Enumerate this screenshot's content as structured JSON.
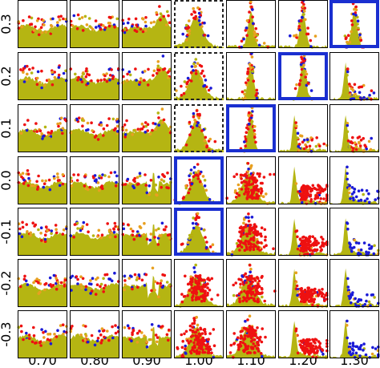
{
  "chart_data": {
    "type": "scatter",
    "layout": "small-multiples grid",
    "x_tick_labels": [
      "0.70",
      "0.80",
      "0.90",
      "1.00",
      "1.10",
      "1.20",
      "1.30"
    ],
    "y_tick_labels": [
      "0.3",
      "0.2",
      "0.1",
      "0.0",
      "-0.1",
      "-0.2",
      "-0.3"
    ],
    "columns": [
      0.7,
      0.8,
      0.9,
      1.0,
      1.1,
      1.2,
      1.3
    ],
    "rows": [
      0.3,
      0.2,
      0.1,
      0.0,
      -0.1,
      -0.2,
      -0.3
    ],
    "series_colors": {
      "base": "#b5b512",
      "red": "#ee1111",
      "blue": "#1a1ad6",
      "orange": "#e8a020"
    },
    "highlight_colors": {
      "solid": "#1a2fd0",
      "dashed": "#222222"
    },
    "panels": [
      {
        "row": 0,
        "col": 0,
        "pattern": "flat",
        "border": "none"
      },
      {
        "row": 0,
        "col": 1,
        "pattern": "flat",
        "border": "none"
      },
      {
        "row": 0,
        "col": 2,
        "pattern": "flat-bump",
        "border": "none"
      },
      {
        "row": 0,
        "col": 3,
        "pattern": "peak",
        "border": "dashed"
      },
      {
        "row": 0,
        "col": 4,
        "pattern": "narrow-peak",
        "border": "none"
      },
      {
        "row": 0,
        "col": 5,
        "pattern": "narrow-peak",
        "border": "none"
      },
      {
        "row": 0,
        "col": 6,
        "pattern": "narrow-peak",
        "border": "solid"
      },
      {
        "row": 1,
        "col": 0,
        "pattern": "flat",
        "border": "none"
      },
      {
        "row": 1,
        "col": 1,
        "pattern": "flat",
        "border": "none"
      },
      {
        "row": 1,
        "col": 2,
        "pattern": "flat-bump",
        "border": "none"
      },
      {
        "row": 1,
        "col": 3,
        "pattern": "peak",
        "border": "dashed"
      },
      {
        "row": 1,
        "col": 4,
        "pattern": "narrow-peak",
        "border": "none"
      },
      {
        "row": 1,
        "col": 5,
        "pattern": "narrow-peak",
        "border": "solid"
      },
      {
        "row": 1,
        "col": 6,
        "pattern": "spike-tail",
        "border": "none"
      },
      {
        "row": 2,
        "col": 0,
        "pattern": "flat",
        "border": "none"
      },
      {
        "row": 2,
        "col": 1,
        "pattern": "flat",
        "border": "none"
      },
      {
        "row": 2,
        "col": 2,
        "pattern": "flat-bump",
        "border": "none"
      },
      {
        "row": 2,
        "col": 3,
        "pattern": "peak",
        "border": "dashed"
      },
      {
        "row": 2,
        "col": 4,
        "pattern": "narrow-peak",
        "border": "solid"
      },
      {
        "row": 2,
        "col": 5,
        "pattern": "spike-tail",
        "border": "none"
      },
      {
        "row": 2,
        "col": 6,
        "pattern": "spike-tail",
        "border": "none"
      },
      {
        "row": 3,
        "col": 0,
        "pattern": "flat",
        "border": "none"
      },
      {
        "row": 3,
        "col": 1,
        "pattern": "flat",
        "border": "none"
      },
      {
        "row": 3,
        "col": 2,
        "pattern": "dips",
        "border": "none"
      },
      {
        "row": 3,
        "col": 3,
        "pattern": "peak",
        "border": "solid"
      },
      {
        "row": 3,
        "col": 4,
        "pattern": "peak-red",
        "border": "none"
      },
      {
        "row": 3,
        "col": 5,
        "pattern": "spike-red",
        "border": "none"
      },
      {
        "row": 3,
        "col": 6,
        "pattern": "spike-blue",
        "border": "none"
      },
      {
        "row": 4,
        "col": 0,
        "pattern": "flat",
        "border": "none"
      },
      {
        "row": 4,
        "col": 1,
        "pattern": "flat",
        "border": "none"
      },
      {
        "row": 4,
        "col": 2,
        "pattern": "dips",
        "border": "none"
      },
      {
        "row": 4,
        "col": 3,
        "pattern": "peak",
        "border": "solid"
      },
      {
        "row": 4,
        "col": 4,
        "pattern": "peak-red",
        "border": "none"
      },
      {
        "row": 4,
        "col": 5,
        "pattern": "spike-red",
        "border": "none"
      },
      {
        "row": 4,
        "col": 6,
        "pattern": "spike-blue",
        "border": "none"
      },
      {
        "row": 5,
        "col": 0,
        "pattern": "flat",
        "border": "none"
      },
      {
        "row": 5,
        "col": 1,
        "pattern": "flat",
        "border": "none"
      },
      {
        "row": 5,
        "col": 2,
        "pattern": "dips",
        "border": "none"
      },
      {
        "row": 5,
        "col": 3,
        "pattern": "peak-red",
        "border": "none"
      },
      {
        "row": 5,
        "col": 4,
        "pattern": "peak-red",
        "border": "none"
      },
      {
        "row": 5,
        "col": 5,
        "pattern": "spike-red",
        "border": "none"
      },
      {
        "row": 5,
        "col": 6,
        "pattern": "spike-blue",
        "border": "none"
      },
      {
        "row": 6,
        "col": 0,
        "pattern": "flat",
        "border": "none"
      },
      {
        "row": 6,
        "col": 1,
        "pattern": "flat",
        "border": "none"
      },
      {
        "row": 6,
        "col": 2,
        "pattern": "dips",
        "border": "none"
      },
      {
        "row": 6,
        "col": 3,
        "pattern": "peak-red",
        "border": "none"
      },
      {
        "row": 6,
        "col": 4,
        "pattern": "peak-red",
        "border": "none"
      },
      {
        "row": 6,
        "col": 5,
        "pattern": "spike-red",
        "border": "none"
      },
      {
        "row": 6,
        "col": 6,
        "pattern": "spike-blue",
        "border": "none"
      }
    ]
  }
}
